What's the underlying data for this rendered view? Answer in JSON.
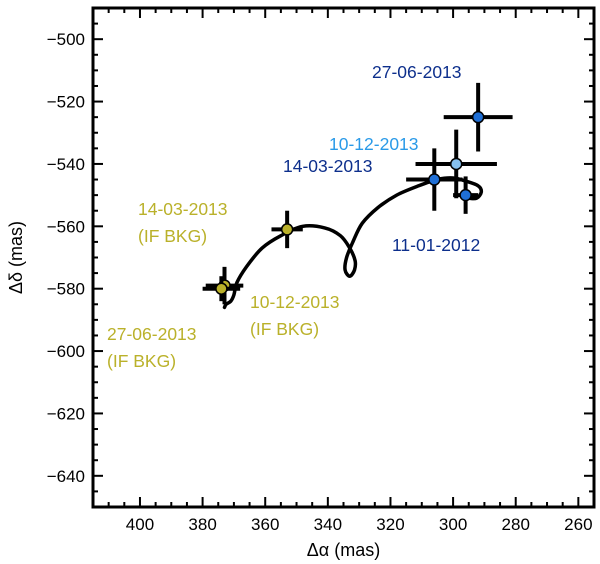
{
  "chart_data": {
    "type": "scatter",
    "xlabel": "Δα (mas)",
    "ylabel": "Δδ (mas)",
    "xlim": [
      415,
      255
    ],
    "ylim": [
      -650,
      -490
    ],
    "xticks": [
      400,
      380,
      360,
      340,
      320,
      300,
      280,
      260
    ],
    "yticks": [
      -640,
      -620,
      -600,
      -580,
      -560,
      -540,
      -520,
      -500
    ],
    "grid": false,
    "points": [
      {
        "date": "11-01-2012",
        "x": 296,
        "y": -550,
        "xerr": 4,
        "yerr": 6,
        "color": "#1f6fd6",
        "label_lines": [
          "11-01-2012"
        ],
        "label_color": "#0d2f8c"
      },
      {
        "date": "14-03-2013",
        "x": 306,
        "y": -545,
        "xerr": 9,
        "yerr": 10,
        "color": "#1f6fd6",
        "label_lines": [
          "14-03-2013"
        ],
        "label_color": "#0d2f8c"
      },
      {
        "date": "10-12-2013",
        "x": 299,
        "y": -540,
        "xerr": 13,
        "yerr": 11,
        "color": "#86c0ee",
        "label_lines": [
          "10-12-2013"
        ],
        "label_color": "#2a9ae8"
      },
      {
        "date": "27-06-2013",
        "x": 292,
        "y": -525,
        "xerr": 11,
        "yerr": 11,
        "color": "#1f6fd6",
        "label_lines": [
          "27-06-2013"
        ],
        "label_color": "#0d2f8c"
      },
      {
        "date": "14-03-2013",
        "x": 353,
        "y": -561,
        "xerr": 5,
        "yerr": 6,
        "color": "#bab12a",
        "label_lines": [
          "14-03-2013",
          "(IF BKG)"
        ],
        "label_color": "#bab12a"
      },
      {
        "date": "10-12-2013",
        "x": 373,
        "y": -579,
        "xerr": 6,
        "yerr": 6,
        "color": "#bab12a",
        "label_lines": [
          "10-12-2013",
          "(IF BKG)"
        ],
        "label_color": "#bab12a"
      },
      {
        "date": "27-06-2013",
        "x": 374,
        "y": -580,
        "xerr": 6,
        "yerr": 4,
        "color": "#bab12a",
        "label_lines": [
          "27-06-2013",
          "(IF BKG)"
        ],
        "label_color": "#bab12a"
      }
    ],
    "track": [
      [
        373,
        -586
      ],
      [
        372.5,
        -585
      ],
      [
        371,
        -584
      ],
      [
        370,
        -582
      ],
      [
        369,
        -578
      ],
      [
        366,
        -573
      ],
      [
        361,
        -567
      ],
      [
        355,
        -563
      ],
      [
        348,
        -560
      ],
      [
        341,
        -560.5
      ],
      [
        336,
        -563
      ],
      [
        333,
        -567
      ],
      [
        331.3,
        -571
      ],
      [
        331.5,
        -574
      ],
      [
        333,
        -576
      ],
      [
        334.5,
        -574
      ],
      [
        334,
        -570
      ],
      [
        332,
        -565
      ],
      [
        329,
        -559
      ],
      [
        324,
        -554
      ],
      [
        318,
        -550
      ],
      [
        311,
        -547
      ],
      [
        305,
        -545
      ],
      [
        300,
        -544.5
      ],
      [
        296,
        -545.5
      ],
      [
        292,
        -547
      ],
      [
        291,
        -549
      ],
      [
        292.5,
        -551
      ],
      [
        295,
        -551
      ]
    ]
  }
}
